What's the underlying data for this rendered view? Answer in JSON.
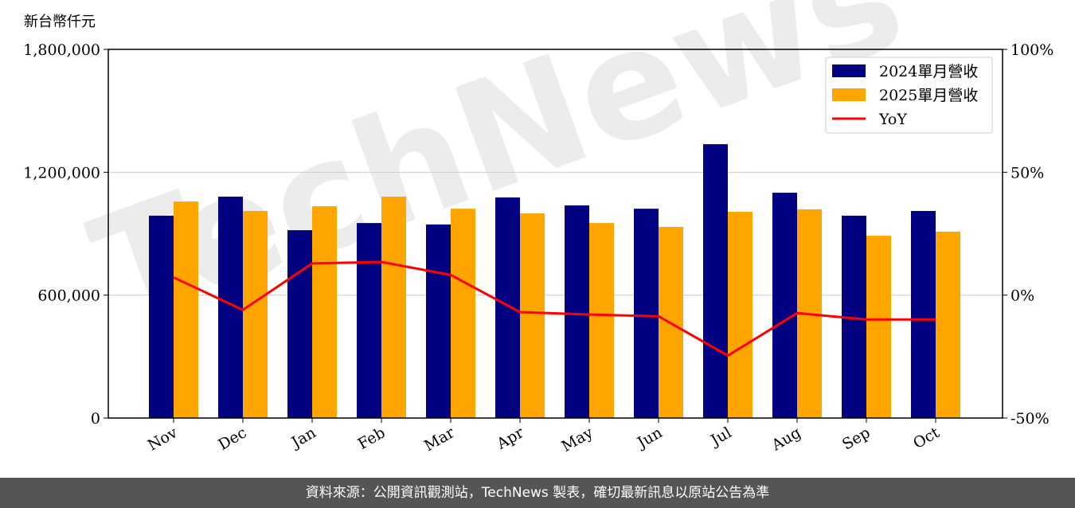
{
  "chart_data": {
    "type": "bar+line",
    "ylabel": "新台幣仟元",
    "categories": [
      "Nov",
      "Dec",
      "Jan",
      "Feb",
      "Mar",
      "Apr",
      "May",
      "Jun",
      "Jul",
      "Aug",
      "Sep",
      "Oct"
    ],
    "ylim": [
      0,
      1800000
    ],
    "yticks": [
      "0",
      "600,000",
      "1,200,000",
      "1,800,000"
    ],
    "y2lim": [
      -50,
      100
    ],
    "y2ticks": [
      "-50%",
      "0%",
      "50%",
      "100%"
    ],
    "grid": "horizontal",
    "legend": "top-right",
    "series": [
      {
        "name": "2024單月營收",
        "type": "bar",
        "color": "#000080",
        "values": [
          988000,
          1081000,
          917000,
          952000,
          945000,
          1077000,
          1038000,
          1022000,
          1337000,
          1100000,
          988000,
          1011000
        ]
      },
      {
        "name": "2025單月營收",
        "type": "bar",
        "color": "#FFA500",
        "values": [
          1057000,
          1011000,
          1034000,
          1081000,
          1022000,
          999000,
          952000,
          933000,
          1007000,
          1019000,
          890000,
          910000
        ]
      },
      {
        "name": "YoY",
        "type": "line",
        "axis": "right",
        "color": "#FF0000",
        "values": [
          7.2,
          -6.0,
          12.9,
          13.5,
          8.2,
          -6.9,
          -7.9,
          -8.6,
          -24.6,
          -7.3,
          -9.9,
          -9.9
        ]
      }
    ]
  },
  "watermark": "TechNews",
  "footer": "資料來源：公開資訊觀測站，TechNews 製表，確切最新訊息以原站公告為準"
}
